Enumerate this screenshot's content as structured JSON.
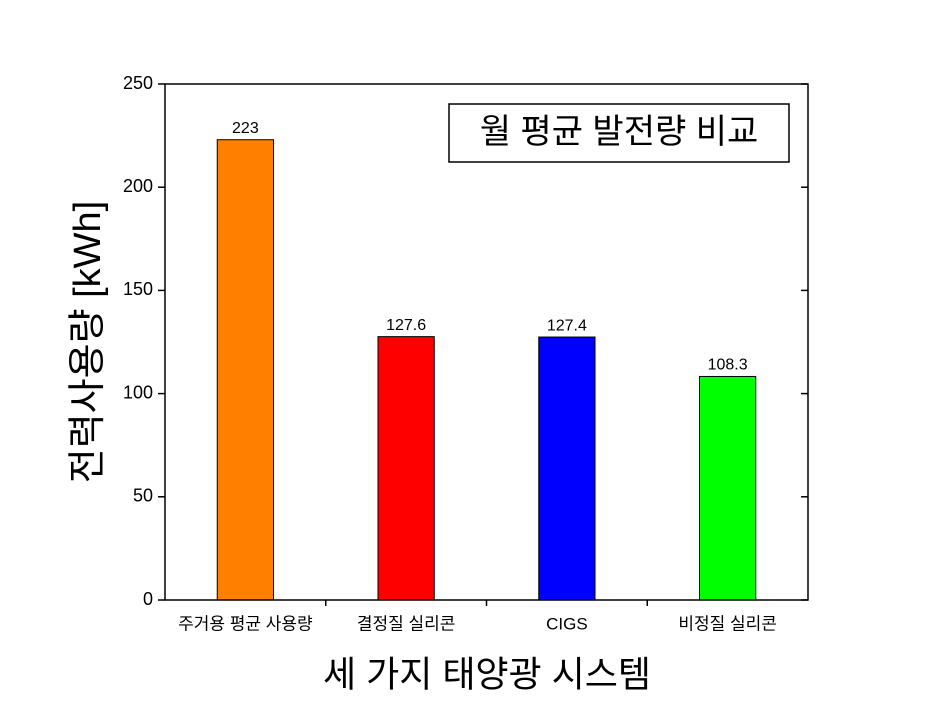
{
  "chart_data": {
    "type": "bar",
    "annotation": "월 평균 발전량 비교",
    "x_label": "세 가지 태양광 시스템",
    "y_label": "전력사용량 [kWh]",
    "categories": [
      "주거용 평균 사용량",
      "결정질 실리콘",
      "CIGS",
      "비정질 실리콘"
    ],
    "values": [
      223,
      127.6,
      127.4,
      108.3
    ],
    "colors": [
      "#ff8000",
      "#ff0000",
      "#0000ff",
      "#00ff00"
    ],
    "ylim": [
      0,
      250
    ],
    "yticks": [
      0,
      50,
      100,
      150,
      200,
      250
    ],
    "grid": false
  }
}
